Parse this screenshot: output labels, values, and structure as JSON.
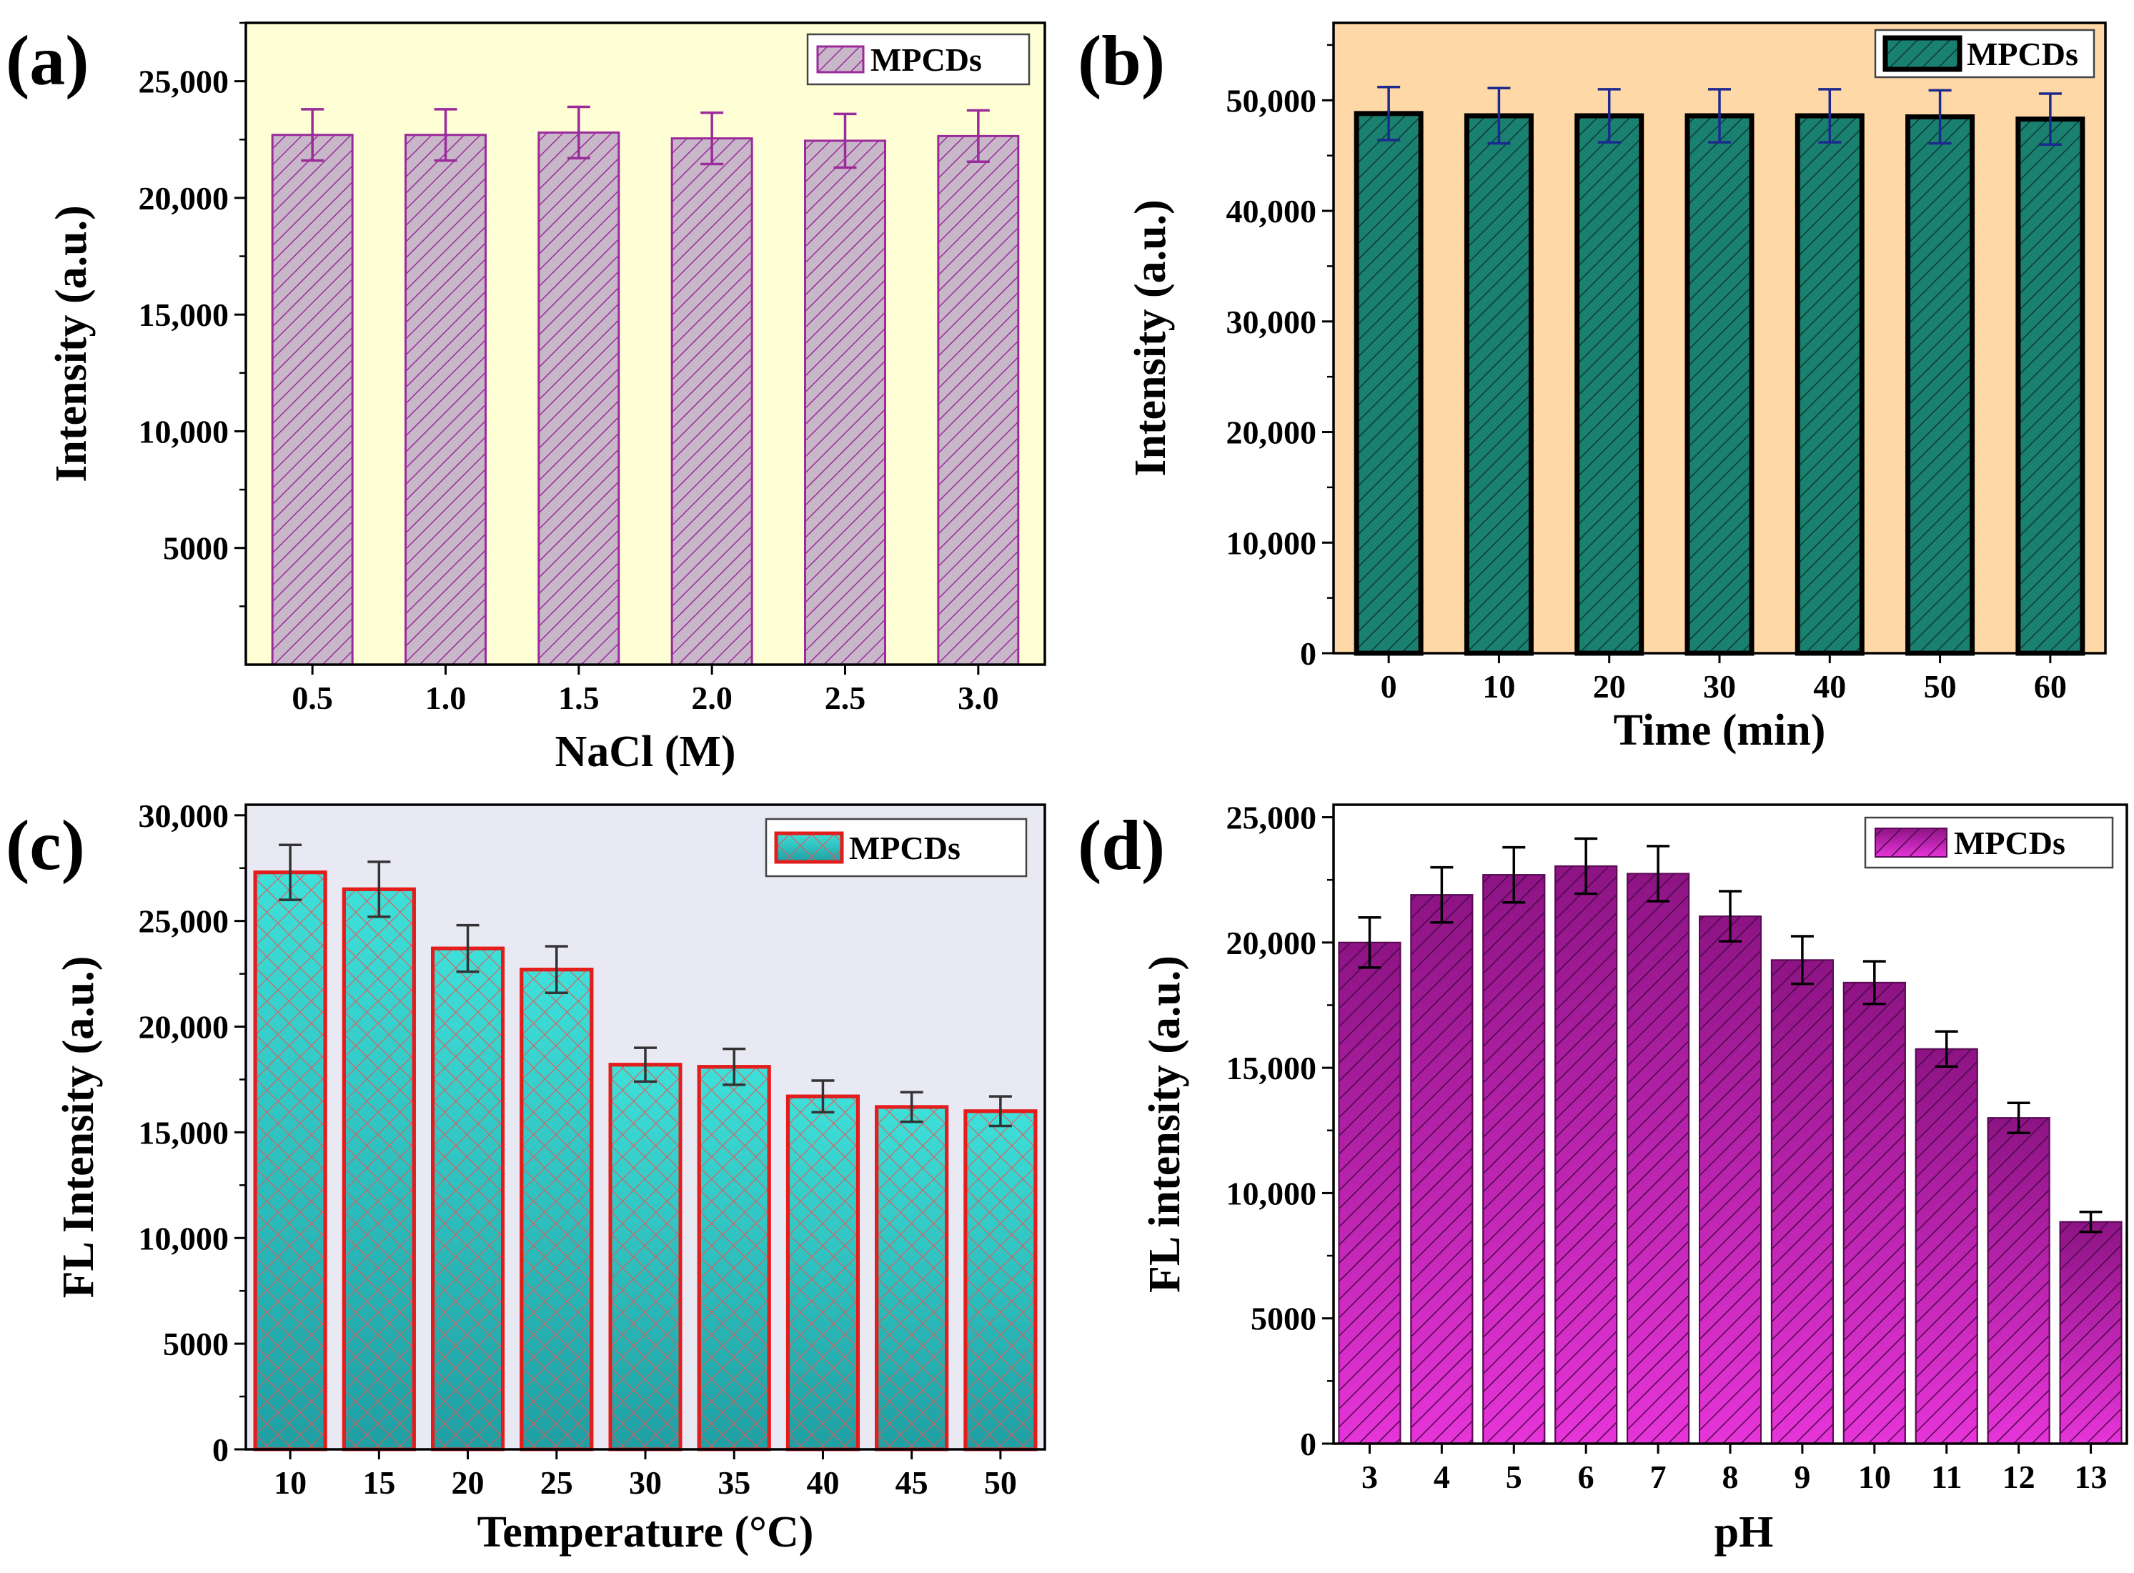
{
  "chart_data": [
    {
      "panel": "(a)",
      "type": "bar",
      "categories": [
        "0.5",
        "1.0",
        "1.5",
        "2.0",
        "2.5",
        "3.0"
      ],
      "series": [
        {
          "name": "MPCDs",
          "values": [
            22700,
            22700,
            22800,
            22550,
            22450,
            22650
          ],
          "errors": [
            1100,
            1100,
            1100,
            1100,
            1150,
            1100
          ]
        }
      ],
      "xlabel": "NaCl (M)",
      "ylabel": "Intensity (a.u.)",
      "ylim": [
        0,
        27500
      ],
      "yticks": [
        5000,
        10000,
        15000,
        20000,
        25000
      ],
      "ytick_labels": [
        "5000",
        "10,000",
        "15,000",
        "20,000",
        "25,000"
      ],
      "legend": "top-right",
      "colors": {
        "background": "#ffffd6",
        "bar_fill": "#c8b7c8",
        "bar_edge": "#9b2a9b",
        "hatch": "#9b2a9b",
        "error": "#9b2a9b"
      }
    },
    {
      "panel": "(b)",
      "type": "bar",
      "categories": [
        "0",
        "10",
        "20",
        "30",
        "40",
        "50",
        "60"
      ],
      "series": [
        {
          "name": "MPCDs",
          "values": [
            48800,
            48600,
            48600,
            48600,
            48600,
            48500,
            48300
          ],
          "errors": [
            2400,
            2500,
            2400,
            2400,
            2400,
            2400,
            2300
          ]
        }
      ],
      "xlabel": "Time (min)",
      "ylabel": "Intensity (a.u.)",
      "ylim": [
        0,
        57000
      ],
      "yticks": [
        0,
        10000,
        20000,
        30000,
        40000,
        50000
      ],
      "ytick_labels": [
        "0",
        "10,000",
        "20,000",
        "30,000",
        "40,000",
        "50,000"
      ],
      "legend": "top-right",
      "colors": {
        "background": "#ffd8a8",
        "bar_fill": "#1a8070",
        "bar_edge": "#000000",
        "hatch": "#0a3c34",
        "error": "#1b2a8c"
      }
    },
    {
      "panel": "(c)",
      "type": "bar",
      "categories": [
        "10",
        "15",
        "20",
        "25",
        "30",
        "35",
        "40",
        "45",
        "50"
      ],
      "series": [
        {
          "name": "MPCDs",
          "values": [
            27300,
            26500,
            23700,
            22700,
            18200,
            18100,
            16700,
            16200,
            16000
          ],
          "errors": [
            1300,
            1300,
            1100,
            1100,
            800,
            850,
            750,
            700,
            700
          ]
        }
      ],
      "xlabel": "Temperature (°C)",
      "ylabel": "FL Intensity (a.u.)",
      "ylim": [
        0,
        30500
      ],
      "yticks": [
        0,
        5000,
        10000,
        15000,
        20000,
        25000,
        30000
      ],
      "ytick_labels": [
        "0",
        "5000",
        "10,000",
        "15,000",
        "20,000",
        "25,000",
        "30,000"
      ],
      "legend": "top-right",
      "colors": {
        "background": "#e9e9f4",
        "bar_fill": "#38d5d0",
        "bar_fill_bottom": "#20a9ad",
        "bar_edge": "#e31c1c",
        "hatch": "#e05a5a",
        "error": "#333333"
      }
    },
    {
      "panel": "(d)",
      "type": "bar",
      "categories": [
        "3",
        "4",
        "5",
        "6",
        "7",
        "8",
        "9",
        "10",
        "11",
        "12",
        "13"
      ],
      "series": [
        {
          "name": "MPCDs",
          "values": [
            20000,
            21900,
            22700,
            23050,
            22750,
            21050,
            19300,
            18400,
            15750,
            13000,
            8850
          ],
          "errors": [
            1000,
            1100,
            1100,
            1100,
            1100,
            1000,
            950,
            850,
            700,
            600,
            400
          ]
        }
      ],
      "xlabel": "pH",
      "ylabel": "FL intensity (a.u.)",
      "ylim": [
        0,
        25500
      ],
      "yticks": [
        0,
        5000,
        10000,
        15000,
        20000,
        25000
      ],
      "ytick_labels": [
        "0",
        "5000",
        "10,000",
        "15,000",
        "20,000",
        "25,000"
      ],
      "legend": "top-right",
      "colors": {
        "background": "#ffffff",
        "bar_fill": "#c020b0",
        "bar_fill_top": "#9a1690",
        "bar_fill_bottom": "#e030d0",
        "bar_edge": "#5a0a55",
        "hatch": "#4a0848",
        "error": "#000000"
      }
    }
  ]
}
